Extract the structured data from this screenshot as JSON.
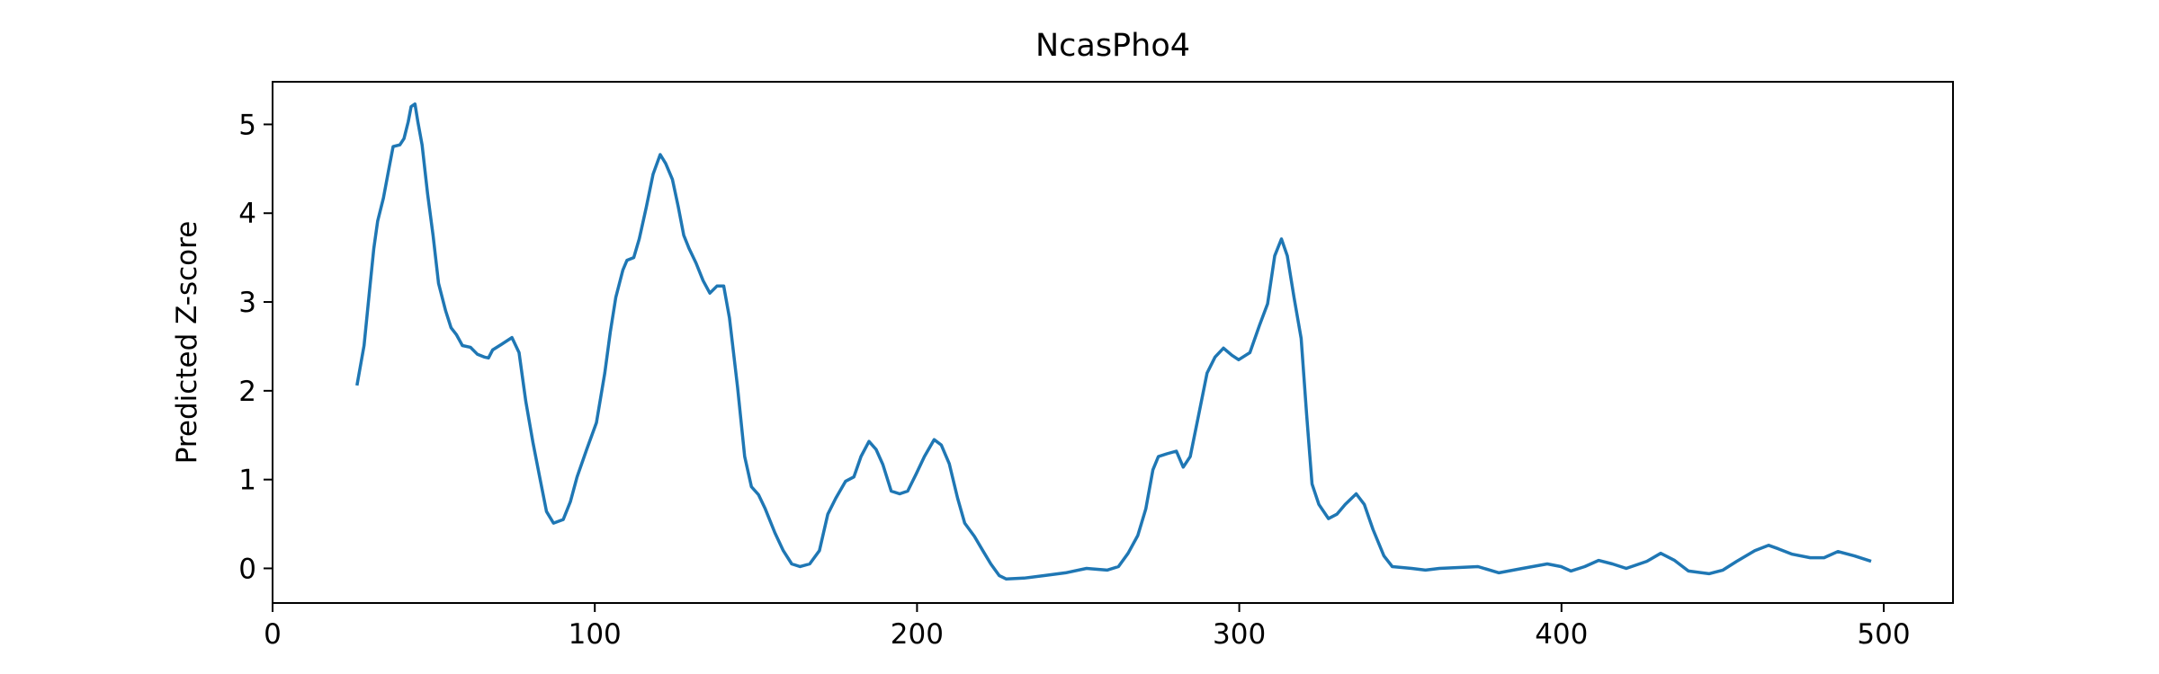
{
  "chart_data": {
    "type": "line",
    "title": "NcasPho4",
    "y_label": "Predicted Z-score",
    "x": [
      26.2,
      28.4,
      30.1,
      31.4,
      32.6,
      34.4,
      36.1,
      37.4,
      39.5,
      40.8,
      42.1,
      43,
      44.2,
      45.1,
      46.4,
      48.1,
      49.8,
      51.5,
      53.7,
      55.4,
      57.1,
      58.9,
      61.4,
      63.6,
      65.7,
      67,
      68.3,
      70.9,
      74.3,
      76.5,
      78.6,
      80.8,
      82.9,
      85,
      87.2,
      90.2,
      92.4,
      94.5,
      97.5,
      100.5,
      103.1,
      104.8,
      106.5,
      108.7,
      110,
      112.1,
      113.8,
      116,
      118.1,
      120.3,
      122,
      124.1,
      125.9,
      127.6,
      129.3,
      131.4,
      133.6,
      135.7,
      137.9,
      140,
      141.8,
      144.3,
      146.5,
      148.6,
      150.8,
      152.9,
      155.9,
      158.5,
      161.1,
      163.7,
      166.7,
      169.7,
      172.3,
      174.8,
      177.8,
      180.4,
      182.6,
      185.1,
      187.3,
      189.4,
      192,
      194.6,
      197.1,
      199.7,
      202.3,
      205.3,
      207.5,
      210,
      212.6,
      214.8,
      217.8,
      220.4,
      222.9,
      225.5,
      227.7,
      233.2,
      239.7,
      246.1,
      252.6,
      259,
      262.5,
      265.5,
      268.5,
      271,
      273.2,
      274.9,
      277.5,
      280.5,
      282.6,
      284.8,
      287.4,
      290,
      292.5,
      295.1,
      297.7,
      299.8,
      303.3,
      306.3,
      308.8,
      311,
      313.1,
      314.9,
      317,
      319.2,
      320.9,
      322.6,
      324.7,
      327.7,
      330.3,
      332.9,
      336.3,
      338.8,
      341.5,
      344.9,
      347.5,
      353.5,
      357.8,
      362.1,
      374.1,
      380.6,
      387.9,
      395.6,
      399.9,
      402.9,
      407.2,
      411.5,
      415.8,
      420.1,
      426.5,
      430.8,
      435.1,
      439.4,
      445.8,
      450.1,
      454.4,
      460,
      464.3,
      467.3,
      471.6,
      477.2,
      481.5,
      485.8,
      490.9,
      493.5,
      496.1
    ],
    "values": [
      2.06,
      2.51,
      3.13,
      3.6,
      3.91,
      4.17,
      4.5,
      4.75,
      4.77,
      4.84,
      5.03,
      5.2,
      5.23,
      5.03,
      4.77,
      4.22,
      3.75,
      3.21,
      2.9,
      2.71,
      2.63,
      2.51,
      2.49,
      2.41,
      2.38,
      2.37,
      2.46,
      2.52,
      2.6,
      2.43,
      1.88,
      1.42,
      1.03,
      0.64,
      0.51,
      0.55,
      0.75,
      1.03,
      1.34,
      1.64,
      2.2,
      2.66,
      3.05,
      3.36,
      3.47,
      3.5,
      3.71,
      4.07,
      4.44,
      4.66,
      4.56,
      4.38,
      4.07,
      3.75,
      3.6,
      3.44,
      3.24,
      3.1,
      3.18,
      3.18,
      2.82,
      2.04,
      1.26,
      0.92,
      0.83,
      0.67,
      0.4,
      0.2,
      0.05,
      0.02,
      0.05,
      0.2,
      0.61,
      0.79,
      0.98,
      1.03,
      1.26,
      1.43,
      1.34,
      1.17,
      0.87,
      0.84,
      0.87,
      1.06,
      1.26,
      1.45,
      1.39,
      1.18,
      0.79,
      0.51,
      0.36,
      0.2,
      0.05,
      -0.08,
      -0.12,
      -0.11,
      -0.08,
      -0.05,
      0,
      -0.02,
      0.02,
      0.17,
      0.37,
      0.67,
      1.11,
      1.26,
      1.29,
      1.32,
      1.14,
      1.26,
      1.73,
      2.2,
      2.38,
      2.48,
      2.4,
      2.35,
      2.43,
      2.74,
      2.98,
      3.52,
      3.71,
      3.52,
      3.05,
      2.59,
      1.73,
      0.95,
      0.72,
      0.56,
      0.61,
      0.72,
      0.84,
      0.72,
      0.44,
      0.14,
      0.02,
      0,
      -0.02,
      0,
      0.02,
      -0.05,
      0,
      0.05,
      0.02,
      -0.03,
      0.02,
      0.09,
      0.05,
      0,
      0.08,
      0.17,
      0.09,
      -0.03,
      -0.06,
      -0.02,
      0.08,
      0.2,
      0.26,
      0.22,
      0.16,
      0.12,
      0.12,
      0.19,
      0.14,
      0.11,
      0.08
    ],
    "color": "#1f77b4",
    "xlim": [
      0,
      521.5
    ],
    "xticks": [
      0,
      100,
      200,
      300,
      400,
      500
    ],
    "ylim": [
      -0.39,
      5.48
    ],
    "yticks": [
      0,
      1,
      2,
      3,
      4,
      5
    ]
  }
}
